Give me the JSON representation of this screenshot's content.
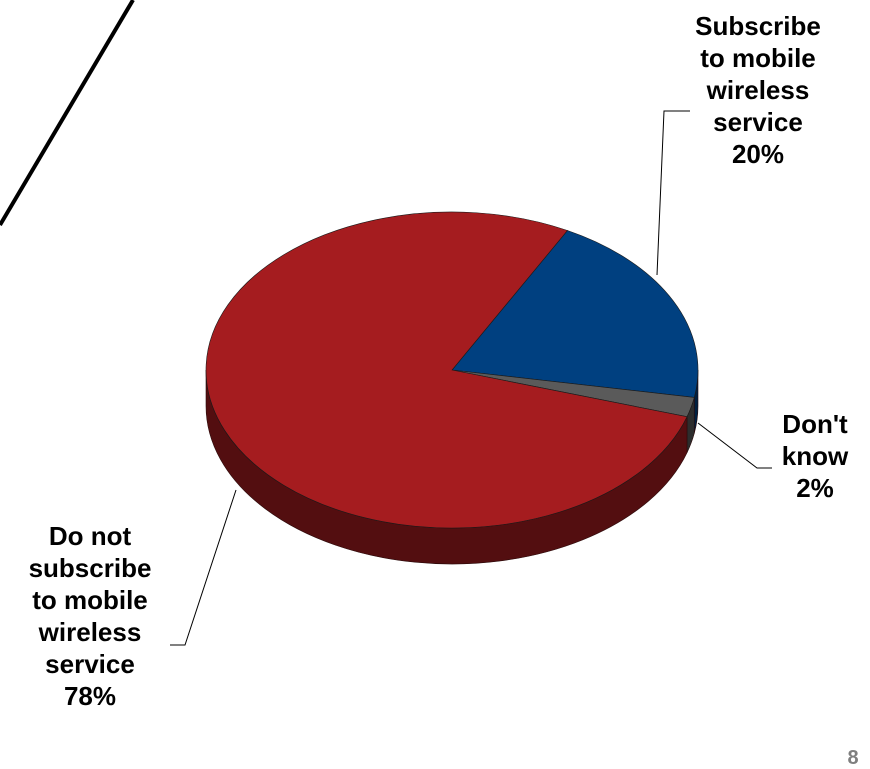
{
  "chart_data": {
    "type": "pie",
    "title": "",
    "slices": [
      {
        "label": "Subscribe to mobile wireless service",
        "label_lines": [
          "Subscribe",
          "to mobile",
          "wireless",
          "service"
        ],
        "value": 20,
        "value_label": "20%",
        "color": "#004080"
      },
      {
        "label": "Don't know",
        "label_lines": [
          "Don't",
          "know"
        ],
        "value": 2,
        "value_label": "2%",
        "color": "#5a5a5a"
      },
      {
        "label": "Do not subscribe to mobile wireless service",
        "label_lines": [
          "Do not",
          "subscribe",
          "to mobile",
          "wireless",
          "service"
        ],
        "value": 78,
        "value_label": "78%",
        "color": "#a51c1f"
      }
    ],
    "style": "3d"
  },
  "corner_mark": "8"
}
